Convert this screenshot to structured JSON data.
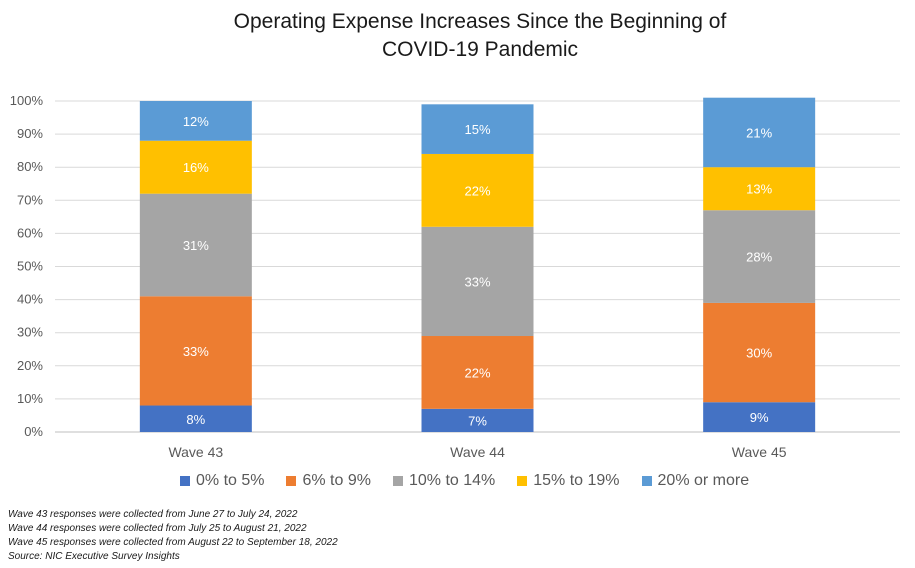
{
  "chart_data": {
    "type": "bar",
    "stacked": true,
    "title_lines": [
      "Operating Expense Increases Since the Beginning of",
      "COVID-19 Pandemic"
    ],
    "categories": [
      "Wave 43",
      "Wave 44",
      "Wave 45"
    ],
    "series": [
      {
        "name": "0% to 5%",
        "color": "#4472C4",
        "values": [
          8,
          7,
          9
        ],
        "labels": [
          "8%",
          "7%",
          "9%"
        ]
      },
      {
        "name": "6% to 9%",
        "color": "#ED7D31",
        "values": [
          33,
          22,
          30
        ],
        "labels": [
          "33%",
          "22%",
          "30%"
        ]
      },
      {
        "name": "10% to 14%",
        "color": "#A5A5A5",
        "values": [
          31,
          33,
          28
        ],
        "labels": [
          "31%",
          "33%",
          "28%"
        ]
      },
      {
        "name": "15% to 19%",
        "color": "#FFC000",
        "values": [
          16,
          22,
          13
        ],
        "labels": [
          "16%",
          "22%",
          "13%"
        ]
      },
      {
        "name": "20% or more",
        "color": "#5B9BD5",
        "values": [
          12,
          15,
          21
        ],
        "labels": [
          "12%",
          "15%",
          "21%"
        ]
      }
    ],
    "ylim": [
      0,
      100
    ],
    "yticks": [
      "0%",
      "10%",
      "20%",
      "30%",
      "40%",
      "50%",
      "60%",
      "70%",
      "80%",
      "90%",
      "100%"
    ],
    "legend_position": "bottom",
    "grid": true
  },
  "notes": [
    "Wave 43 responses were collected from June 27 to July 24, 2022",
    "Wave 44 responses were collected from July 25 to August 21, 2022",
    "Wave 45 responses were collected from August 22 to September 18, 2022",
    "Source: NIC Executive Survey Insights"
  ]
}
